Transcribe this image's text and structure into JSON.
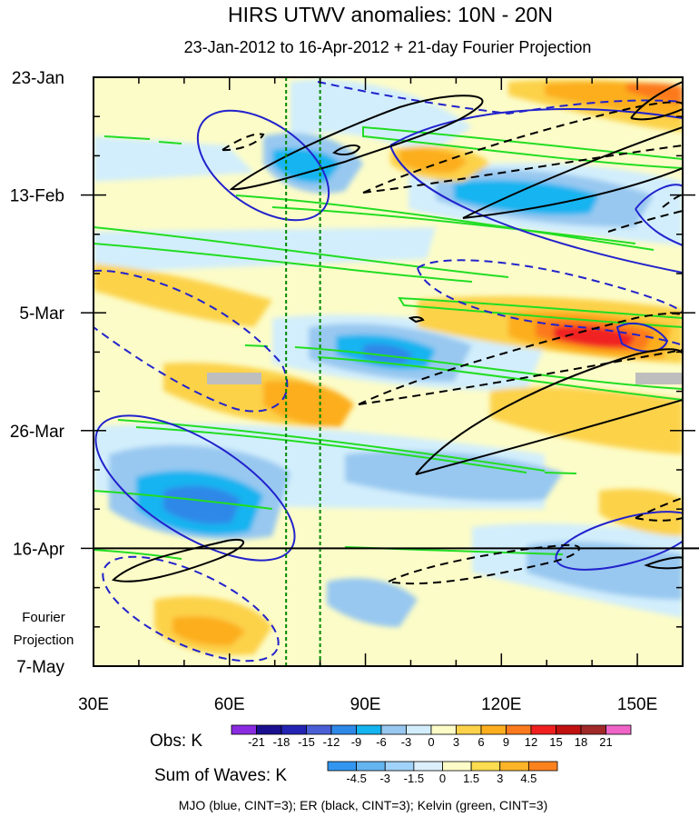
{
  "chart_data": {
    "type": "heatmap",
    "title": "HIRS UTWV anomalies: 10N - 20N",
    "subtitle": "23-Jan-2012 to 16-Apr-2012 + 21-day Fourier Projection",
    "x_ticks": [
      {
        "lon": 30,
        "label": "30E"
      },
      {
        "lon": 60,
        "label": "60E"
      },
      {
        "lon": 90,
        "label": "90E"
      },
      {
        "lon": 120,
        "label": "120E"
      },
      {
        "lon": 150,
        "label": "150E"
      }
    ],
    "xlim": [
      30,
      160
    ],
    "y_ticks": [
      {
        "day": 0,
        "label": "23-Jan"
      },
      {
        "day": 21,
        "label": "13-Feb"
      },
      {
        "day": 42,
        "label": "5-Mar"
      },
      {
        "day": 63,
        "label": "26-Mar"
      },
      {
        "day": 84,
        "label": "16-Apr"
      },
      {
        "day": 105,
        "label": "7-May"
      }
    ],
    "ylim_days": [
      0,
      105
    ],
    "obs_end_day": 84,
    "reference_lines_lon": [
      72.5,
      80
    ],
    "projection_label": [
      "Fourier",
      "Projection"
    ],
    "obs_colorbar": {
      "label": "Obs: K",
      "levels": [
        "-21",
        "-18",
        "-15",
        "-12",
        "-9",
        "-6",
        "-3",
        "0",
        "3",
        "6",
        "9",
        "12",
        "15",
        "18",
        "21"
      ],
      "colors": [
        "#8a2be2",
        "#1a0f8f",
        "#2323b4",
        "#4a5fd6",
        "#2e88e8",
        "#14b4f0",
        "#98c8f0",
        "#d2eefc",
        "#fcfcc8",
        "#fcd24a",
        "#fcae1e",
        "#fc7a1e",
        "#f02020",
        "#c01010",
        "#a02828",
        "#f064c8"
      ]
    },
    "waves_colorbar": {
      "label": "Sum of Waves: K",
      "levels": [
        "-4.5",
        "-3",
        "-1.5",
        "0",
        "1.5",
        "3",
        "4.5"
      ],
      "colors": [
        "#3296f0",
        "#64b4f0",
        "#a0d2fa",
        "#dcf0fc",
        "#fcfcc8",
        "#fcdc50",
        "#fcb428",
        "#fc821e"
      ]
    },
    "footnote": "MJO (blue, CINT=3); ER (black, CINT=3); Kelvin (green, CINT=3)"
  }
}
